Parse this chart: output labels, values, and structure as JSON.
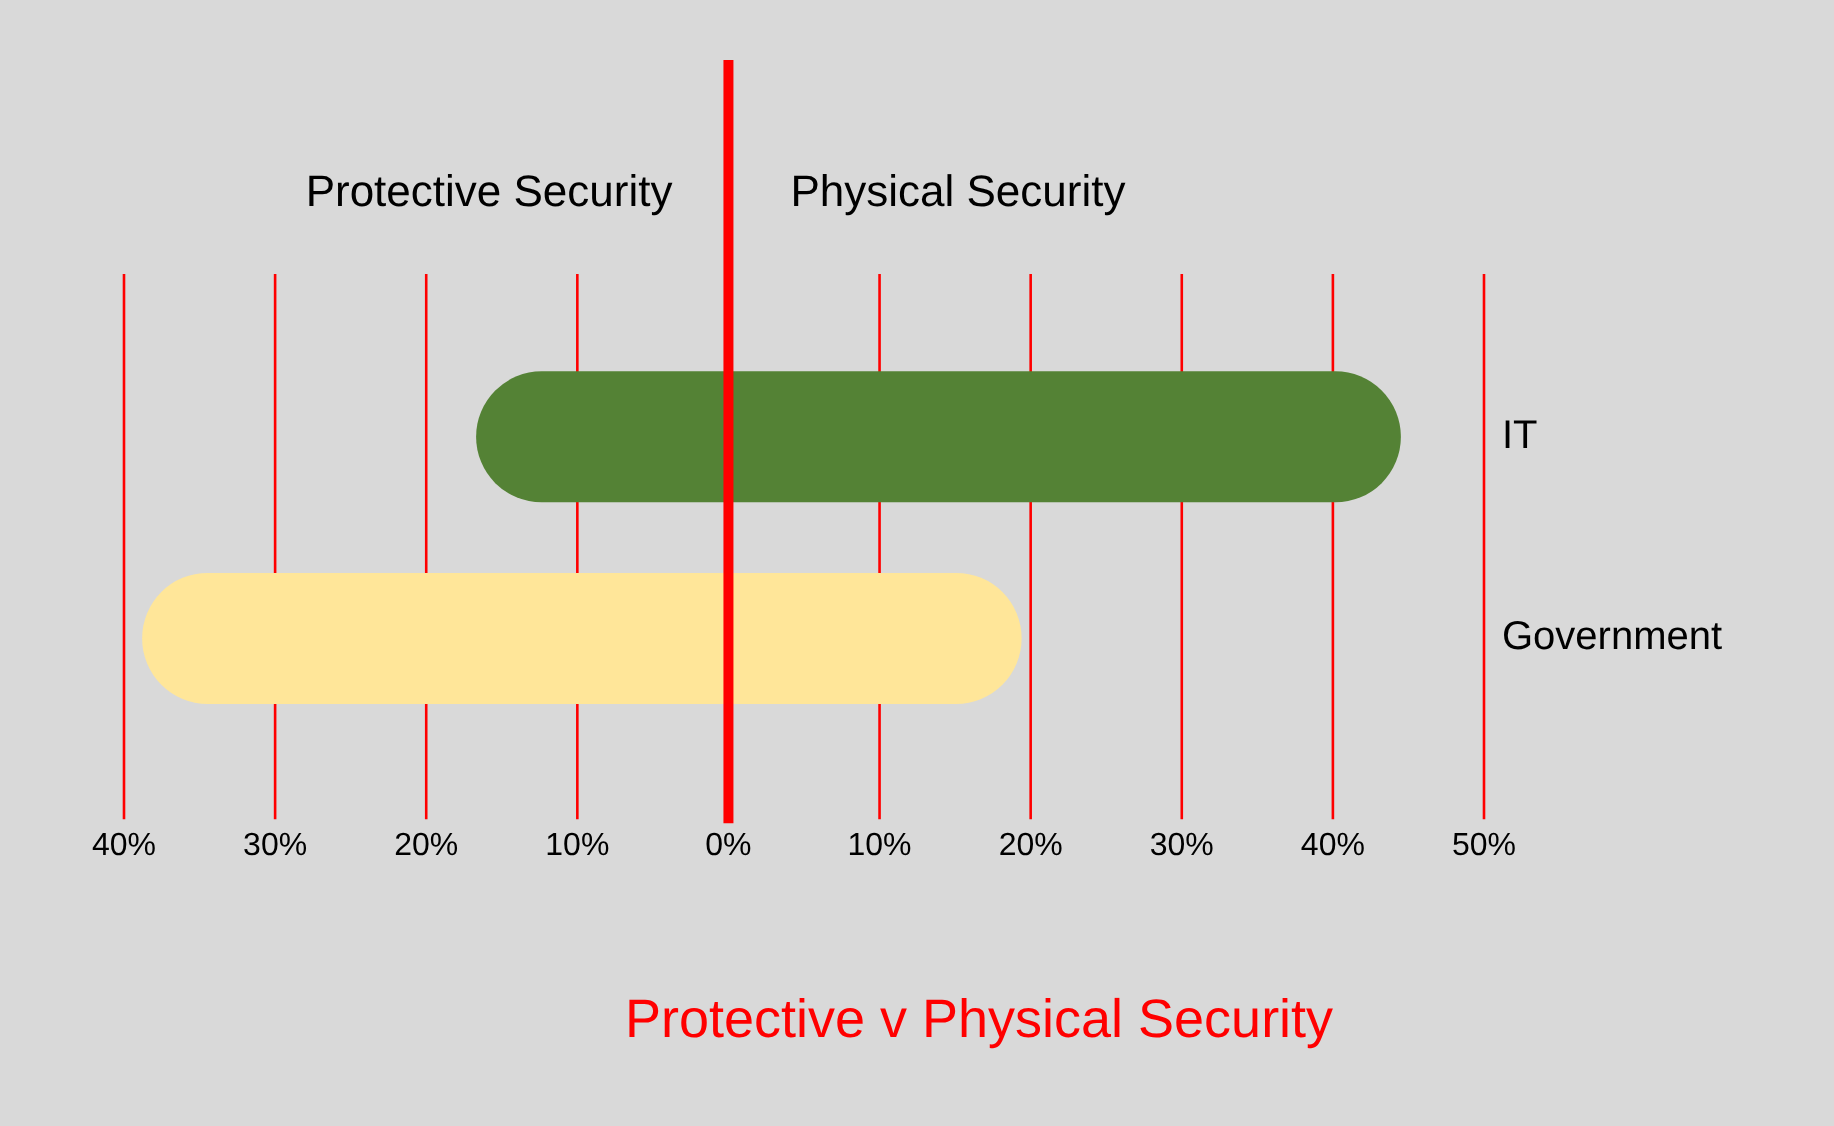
{
  "chart_data": {
    "type": "bar",
    "orientation": "horizontal",
    "title": "Protective v Physical Security",
    "annotations": [
      "Protective Security",
      "Physical Security"
    ],
    "categories": [
      "IT",
      "Government"
    ],
    "base": [
      -16.7,
      -38.8
    ],
    "values": [
      61.2,
      58.2
    ],
    "colors": [
      "#548235",
      "#ffe699"
    ],
    "xlim": [
      -40,
      50
    ],
    "xticks": [
      {
        "value": -40,
        "label": "40%"
      },
      {
        "value": -30,
        "label": "30%"
      },
      {
        "value": -20,
        "label": "20%"
      },
      {
        "value": -10,
        "label": "10%"
      },
      {
        "value": 0,
        "label": "0%"
      },
      {
        "value": 10,
        "label": "10%"
      },
      {
        "value": 20,
        "label": "20%"
      },
      {
        "value": 30,
        "label": "30%"
      },
      {
        "value": 40,
        "label": "40%"
      },
      {
        "value": 50,
        "label": "50%"
      }
    ],
    "grid": "x",
    "legend": false,
    "ref_lines": [
      {
        "axis": "x",
        "value": 0,
        "color": "#ff0000"
      }
    ]
  }
}
